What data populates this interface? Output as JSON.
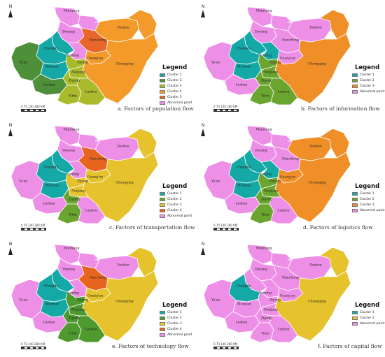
{
  "compass_label": "N",
  "legend_title": "Legend",
  "scale_ticks": "0  70 140      280 KM",
  "region_names": [
    "Mianyang",
    "Deyang",
    "Chengdu",
    "Meishan",
    "Ya'an",
    "Leshan",
    "Suining",
    "Ziyang",
    "Neijiang",
    "Zigong",
    "Yibin",
    "Luzhou",
    "Nanchong",
    "Guang'an",
    "Dazhou",
    "Chongqing"
  ],
  "colors": {
    "cluster_1": "#14a9a6",
    "cluster_2": "#6aa52f",
    "cluster_3": "#a9bb2a",
    "cluster_3_yellow": "#e6c22c",
    "cluster_4": "#f08f28",
    "cluster_5": "#eb8a27",
    "cluster_4_red": "#e8651f",
    "abnormal": "#ee8fe7",
    "border": "#ffffff"
  },
  "panels": [
    {
      "caption": "a. Factors of population flow",
      "legend": [
        {
          "label": "Cluster 1",
          "color": "#14a9a6"
        },
        {
          "label": "Cluster 2",
          "color": "#4e8f3a"
        },
        {
          "label": "Cluster 3",
          "color": "#a9bb2a"
        },
        {
          "label": "Cluster 4",
          "color": "#f39a2a"
        },
        {
          "label": "Cluster 5",
          "color": "#e9662a"
        },
        {
          "label": "Abnormal point",
          "color": "#ee8fe7"
        }
      ],
      "assign": {
        "Mianyang": "#ee8fe7",
        "Deyang": "#14a9a6",
        "Chengdu": "#14a9a6",
        "Meishan": "#14a9a6",
        "Ya'an": "#4e8f3a",
        "Leshan": "#4e8f3a",
        "Suining": "#ee8fe7",
        "Ziyang": "#a9bb2a",
        "Neijiang": "#a9bb2a",
        "Zigong": "#a9bb2a",
        "Yibin": "#a9bb2a",
        "Luzhou": "#a9bb2a",
        "Nanchong": "#e9662a",
        "Guang'an": "#f39a2a",
        "Dazhou": "#f39a2a",
        "Chongqing": "#f39a2a",
        "Bazhong": "#ee8fe7",
        "Guangyuan": "#ee8fe7",
        "Fringe": "#f39a2a"
      }
    },
    {
      "caption": "b. Factors of information flow",
      "legend": [
        {
          "label": "Cluster 1",
          "color": "#14a9a6"
        },
        {
          "label": "Cluster 2",
          "color": "#6aa52f"
        },
        {
          "label": "Cluster 3",
          "color": "#f08f28"
        },
        {
          "label": "Abnormal point",
          "color": "#ee8fe7"
        }
      ],
      "assign": {
        "Mianyang": "#ee8fe7",
        "Deyang": "#14a9a6",
        "Chengdu": "#14a9a6",
        "Meishan": "#14a9a6",
        "Ya'an": "#ee8fe7",
        "Leshan": "#ee8fe7",
        "Suining": "#14a9a6",
        "Ziyang": "#6aa52f",
        "Neijiang": "#6aa52f",
        "Zigong": "#6aa52f",
        "Yibin": "#6aa52f",
        "Luzhou": "#6aa52f",
        "Nanchong": "#ee8fe7",
        "Guang'an": "#ee8fe7",
        "Dazhou": "#ee8fe7",
        "Chongqing": "#f08f28",
        "Bazhong": "#ee8fe7",
        "Guangyuan": "#ee8fe7",
        "Fringe": "#f08f28"
      }
    },
    {
      "caption": "c. Factors of transportation flow",
      "legend": [
        {
          "label": "Cluster 1",
          "color": "#14a9a6"
        },
        {
          "label": "Cluster 2",
          "color": "#6aa52f"
        },
        {
          "label": "Cluster 3",
          "color": "#e6c22c"
        },
        {
          "label": "Cluster 4",
          "color": "#e8651f"
        },
        {
          "label": "Abnormal point",
          "color": "#ee8fe7"
        }
      ],
      "assign": {
        "Mianyang": "#ee8fe7",
        "Deyang": "#14a9a6",
        "Chengdu": "#14a9a6",
        "Meishan": "#14a9a6",
        "Ya'an": "#ee8fe7",
        "Leshan": "#ee8fe7",
        "Suining": "#ee8fe7",
        "Ziyang": "#e6c22c",
        "Neijiang": "#e6c22c",
        "Zigong": "#6aa52f",
        "Yibin": "#6aa52f",
        "Luzhou": "#ee8fe7",
        "Nanchong": "#e8651f",
        "Guang'an": "#e6c22c",
        "Dazhou": "#ee8fe7",
        "Chongqing": "#e6c22c",
        "Bazhong": "#ee8fe7",
        "Guangyuan": "#ee8fe7",
        "Fringe": "#e6c22c"
      }
    },
    {
      "caption": "d. Factors of logistics flow",
      "legend": [
        {
          "label": "Cluster 1",
          "color": "#14a9a6"
        },
        {
          "label": "Cluster 2",
          "color": "#6aa52f"
        },
        {
          "label": "Cluster 3",
          "color": "#f08f28"
        },
        {
          "label": "Abnormal point",
          "color": "#ee8fe7"
        }
      ],
      "assign": {
        "Mianyang": "#ee8fe7",
        "Deyang": "#14a9a6",
        "Chengdu": "#14a9a6",
        "Meishan": "#14a9a6",
        "Ya'an": "#ee8fe7",
        "Leshan": "#ee8fe7",
        "Suining": "#14a9a6",
        "Ziyang": "#6aa52f",
        "Neijiang": "#6aa52f",
        "Zigong": "#6aa52f",
        "Yibin": "#6aa52f",
        "Luzhou": "#ee8fe7",
        "Nanchong": "#ee8fe7",
        "Guang'an": "#f08f28",
        "Dazhou": "#f08f28",
        "Chongqing": "#f08f28",
        "Bazhong": "#ee8fe7",
        "Guangyuan": "#ee8fe7",
        "Fringe": "#f08f28"
      }
    },
    {
      "caption": "e. Factors of technology flow",
      "legend": [
        {
          "label": "Cluster 1",
          "color": "#14a9a6"
        },
        {
          "label": "Cluster 2",
          "color": "#4e9a2e"
        },
        {
          "label": "Cluster 3",
          "color": "#e6c22c"
        },
        {
          "label": "Cluster 4",
          "color": "#e8651f"
        },
        {
          "label": "Abnormal point",
          "color": "#ee8fe7"
        }
      ],
      "assign": {
        "Mianyang": "#ee8fe7",
        "Deyang": "#14a9a6",
        "Chengdu": "#14a9a6",
        "Meishan": "#14a9a6",
        "Ya'an": "#ee8fe7",
        "Leshan": "#ee8fe7",
        "Suining": "#ee8fe7",
        "Ziyang": "#4e9a2e",
        "Neijiang": "#4e9a2e",
        "Zigong": "#4e9a2e",
        "Yibin": "#4e9a2e",
        "Luzhou": "#4e9a2e",
        "Nanchong": "#e8651f",
        "Guang'an": "#e6c22c",
        "Dazhou": "#ee8fe7",
        "Chongqing": "#e6c22c",
        "Bazhong": "#ee8fe7",
        "Guangyuan": "#ee8fe7",
        "Fringe": "#e6c22c"
      }
    },
    {
      "caption": "f. Factors of capital flow",
      "legend": [
        {
          "label": "Cluster 1",
          "color": "#14a9a6"
        },
        {
          "label": "Cluster 2",
          "color": "#e6c22c"
        },
        {
          "label": "Abnormal point",
          "color": "#ee8fe7"
        }
      ],
      "assign": {
        "Mianyang": "#ee8fe7",
        "Deyang": "#ee8fe7",
        "Chengdu": "#14a9a6",
        "Meishan": "#ee8fe7",
        "Ya'an": "#ee8fe7",
        "Leshan": "#ee8fe7",
        "Suining": "#ee8fe7",
        "Ziyang": "#ee8fe7",
        "Neijiang": "#ee8fe7",
        "Zigong": "#ee8fe7",
        "Yibin": "#ee8fe7",
        "Luzhou": "#ee8fe7",
        "Nanchong": "#ee8fe7",
        "Guang'an": "#ee8fe7",
        "Dazhou": "#ee8fe7",
        "Chongqing": "#e6c22c",
        "Bazhong": "#ee8fe7",
        "Guangyuan": "#ee8fe7",
        "Fringe": "#e6c22c"
      }
    }
  ]
}
